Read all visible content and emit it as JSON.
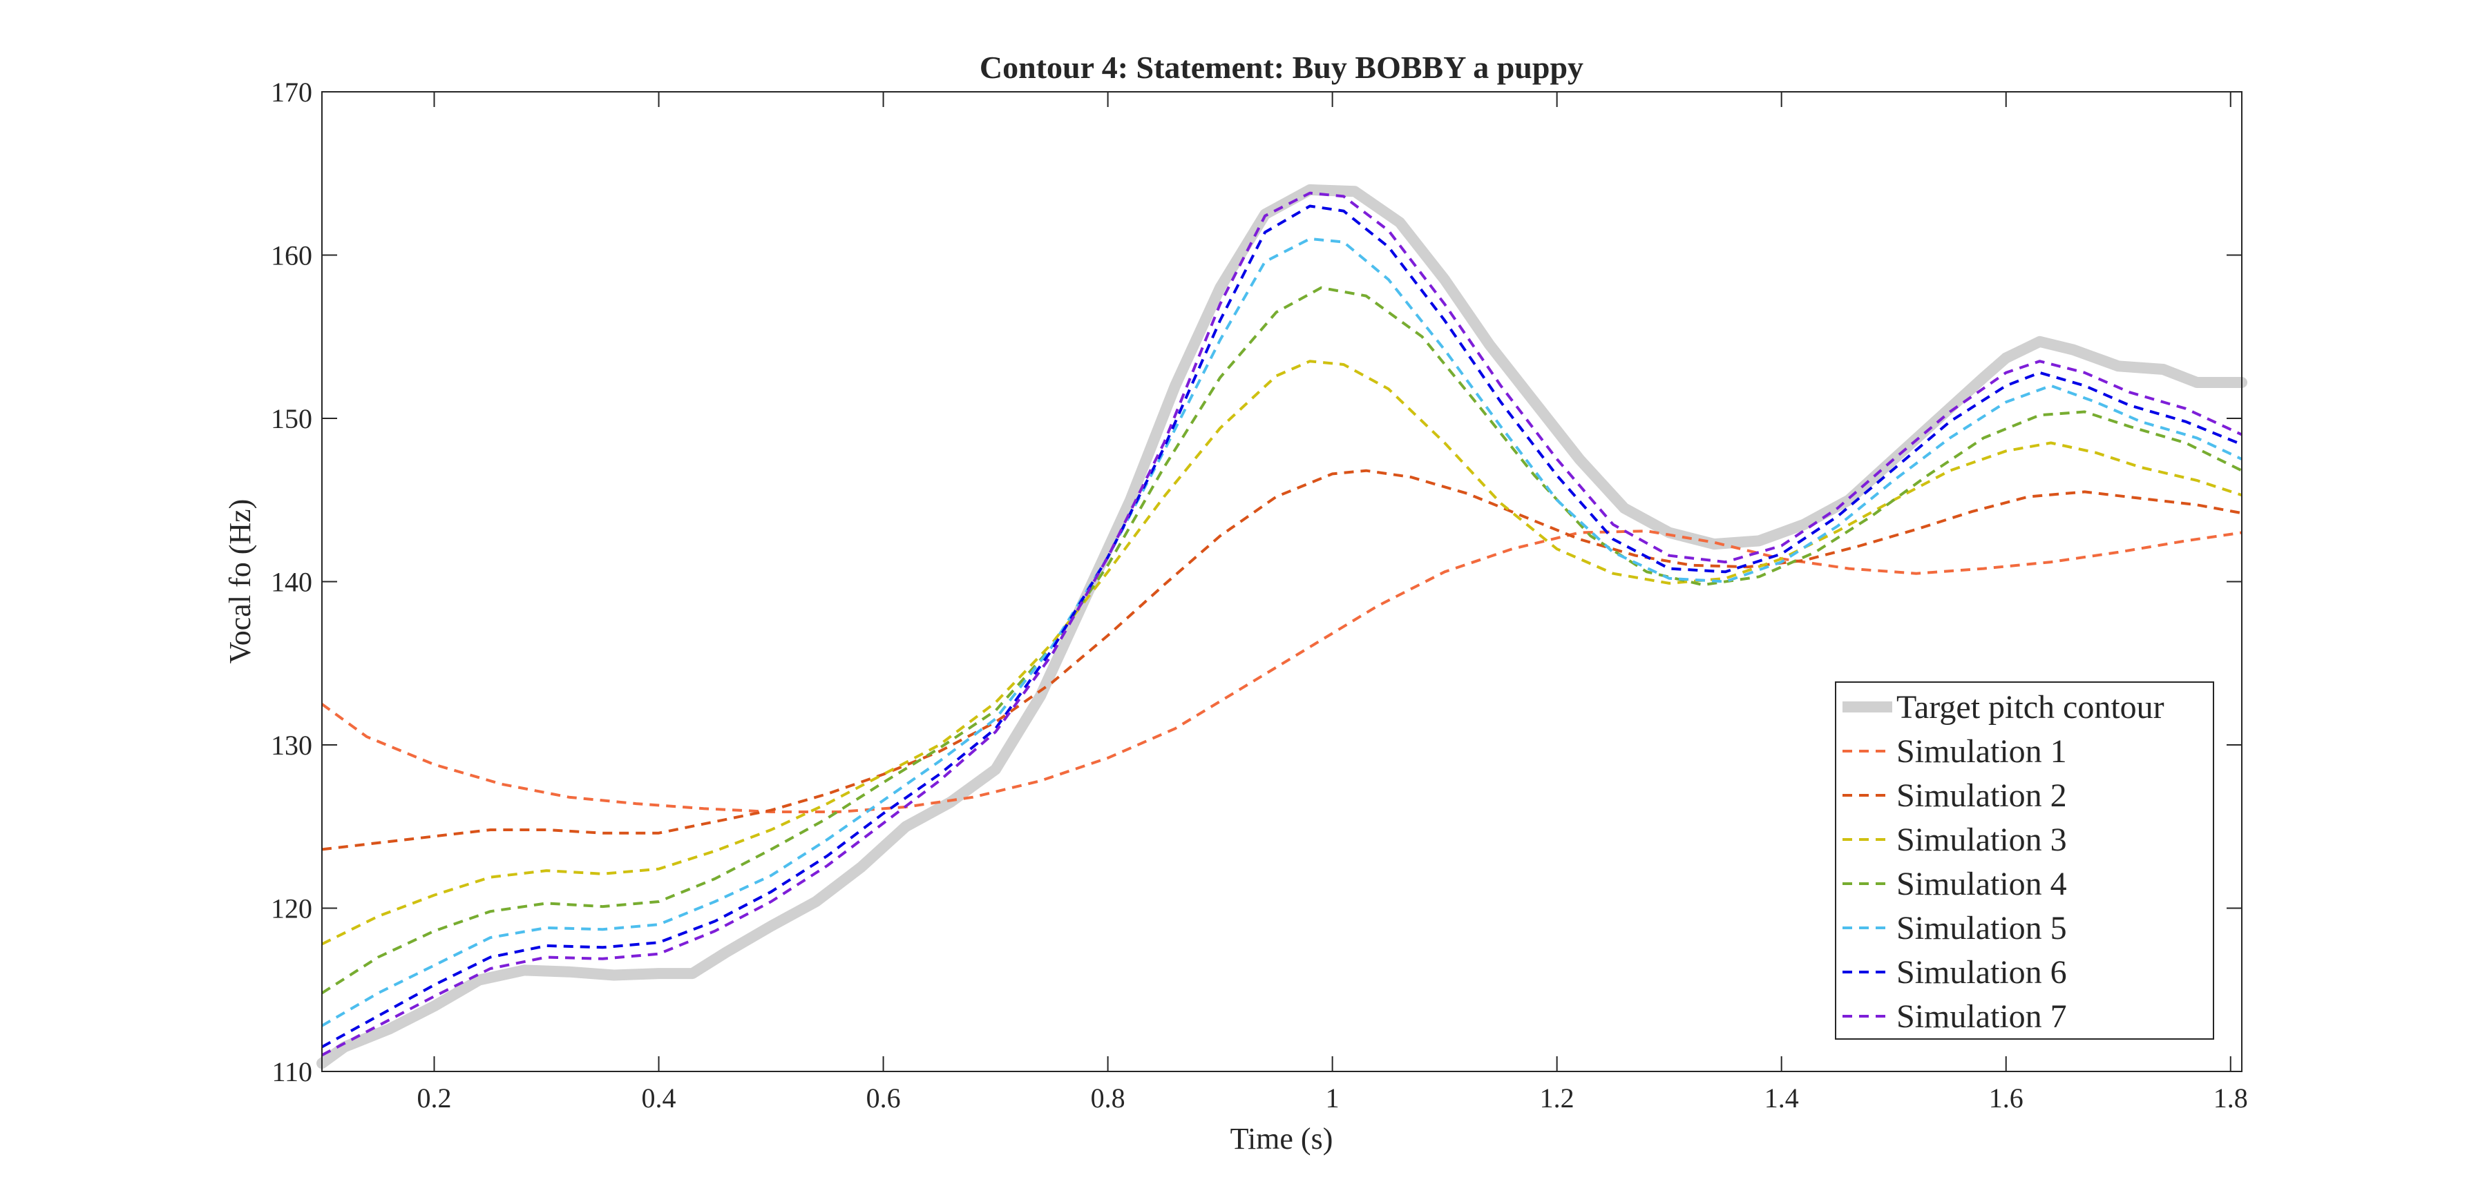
{
  "chart_data": {
    "type": "line",
    "title": "Contour 4: Statement: Buy BOBBY a puppy",
    "xlabel": "Time (s)",
    "ylabel": "Vocal fo (Hz)",
    "xlim": [
      0.1,
      1.81
    ],
    "ylim": [
      110,
      170
    ],
    "xticks": [
      0.2,
      0.4,
      0.6,
      0.8,
      1,
      1.2,
      1.4,
      1.6,
      1.8
    ],
    "xtick_labels": [
      "0.2",
      "0.4",
      "0.6",
      "0.8",
      "1",
      "1.2",
      "1.4",
      "1.6",
      "1.8"
    ],
    "yticks": [
      110,
      120,
      130,
      140,
      150,
      160,
      170
    ],
    "ytick_labels": [
      "110",
      "120",
      "130",
      "140",
      "150",
      "160",
      "170"
    ],
    "grid": false,
    "legend_position": "bottom-right",
    "series": [
      {
        "name": "Target pitch contour",
        "color": "#d0d0d0",
        "style": "solid-thick",
        "x": [
          0.1,
          0.12,
          0.16,
          0.2,
          0.24,
          0.28,
          0.32,
          0.36,
          0.4,
          0.43,
          0.46,
          0.5,
          0.54,
          0.58,
          0.62,
          0.66,
          0.7,
          0.74,
          0.78,
          0.82,
          0.86,
          0.9,
          0.94,
          0.98,
          1.02,
          1.06,
          1.1,
          1.14,
          1.18,
          1.22,
          1.26,
          1.3,
          1.34,
          1.38,
          1.42,
          1.46,
          1.5,
          1.54,
          1.58,
          1.6,
          1.63,
          1.66,
          1.7,
          1.74,
          1.77,
          1.81
        ],
        "values": [
          110.5,
          111.5,
          112.6,
          114.0,
          115.6,
          116.2,
          116.1,
          115.9,
          116.0,
          116.0,
          117.3,
          118.9,
          120.4,
          122.5,
          125.0,
          126.5,
          128.5,
          133.0,
          139.0,
          145.0,
          152.0,
          158.0,
          162.5,
          164.0,
          163.9,
          162.0,
          158.5,
          154.5,
          151.0,
          147.5,
          144.5,
          143.0,
          142.3,
          142.5,
          143.5,
          145.0,
          147.5,
          150.0,
          152.5,
          153.7,
          154.7,
          154.2,
          153.2,
          153.0,
          152.2,
          152.2
        ]
      },
      {
        "name": "Simulation 1",
        "color": "#f26a3d",
        "style": "dashed",
        "x": [
          0.1,
          0.14,
          0.2,
          0.26,
          0.32,
          0.38,
          0.44,
          0.5,
          0.56,
          0.62,
          0.68,
          0.74,
          0.8,
          0.86,
          0.92,
          0.98,
          1.04,
          1.1,
          1.16,
          1.22,
          1.28,
          1.34,
          1.4,
          1.46,
          1.52,
          1.58,
          1.64,
          1.7,
          1.76,
          1.81
        ],
        "values": [
          132.5,
          130.5,
          128.8,
          127.6,
          126.8,
          126.4,
          126.1,
          125.9,
          125.9,
          126.2,
          126.8,
          127.8,
          129.2,
          131.0,
          133.5,
          136.0,
          138.5,
          140.6,
          142.0,
          143.0,
          143.1,
          142.4,
          141.4,
          140.8,
          140.5,
          140.8,
          141.2,
          141.8,
          142.5,
          143.0
        ]
      },
      {
        "name": "Simulation 2",
        "color": "#d95319",
        "style": "dashed",
        "x": [
          0.1,
          0.15,
          0.2,
          0.25,
          0.3,
          0.35,
          0.4,
          0.45,
          0.5,
          0.55,
          0.6,
          0.65,
          0.7,
          0.75,
          0.8,
          0.85,
          0.9,
          0.95,
          1.0,
          1.03,
          1.07,
          1.12,
          1.17,
          1.22,
          1.27,
          1.32,
          1.37,
          1.42,
          1.47,
          1.52,
          1.57,
          1.62,
          1.67,
          1.72,
          1.77,
          1.81
        ],
        "values": [
          123.6,
          124.0,
          124.4,
          124.8,
          124.8,
          124.6,
          124.6,
          125.3,
          126.0,
          127.0,
          128.2,
          129.6,
          131.4,
          133.8,
          136.7,
          139.8,
          142.8,
          145.2,
          146.6,
          146.8,
          146.4,
          145.4,
          144.0,
          142.6,
          141.6,
          141.0,
          140.9,
          141.3,
          142.2,
          143.2,
          144.3,
          145.2,
          145.5,
          145.1,
          144.7,
          144.2
        ]
      },
      {
        "name": "Simulation 3",
        "color": "#cfc010",
        "style": "dashed",
        "x": [
          0.1,
          0.15,
          0.2,
          0.25,
          0.3,
          0.35,
          0.4,
          0.45,
          0.5,
          0.55,
          0.6,
          0.65,
          0.7,
          0.75,
          0.8,
          0.85,
          0.9,
          0.95,
          0.98,
          1.01,
          1.05,
          1.1,
          1.15,
          1.2,
          1.25,
          1.3,
          1.35,
          1.4,
          1.45,
          1.5,
          1.55,
          1.6,
          1.64,
          1.68,
          1.72,
          1.77,
          1.81
        ],
        "values": [
          117.8,
          119.5,
          120.8,
          121.9,
          122.3,
          122.1,
          122.4,
          123.5,
          124.8,
          126.4,
          128.2,
          130.0,
          132.6,
          136.2,
          140.6,
          145.2,
          149.4,
          152.6,
          153.5,
          153.3,
          151.8,
          148.5,
          144.8,
          142.0,
          140.5,
          139.9,
          140.2,
          141.4,
          143.1,
          145.0,
          146.8,
          148.0,
          148.5,
          147.9,
          147.0,
          146.2,
          145.3
        ]
      },
      {
        "name": "Simulation 4",
        "color": "#77ac30",
        "style": "dashed",
        "x": [
          0.1,
          0.15,
          0.2,
          0.25,
          0.3,
          0.35,
          0.4,
          0.45,
          0.5,
          0.55,
          0.6,
          0.65,
          0.7,
          0.75,
          0.8,
          0.85,
          0.9,
          0.95,
          0.99,
          1.03,
          1.08,
          1.13,
          1.18,
          1.23,
          1.28,
          1.33,
          1.38,
          1.43,
          1.48,
          1.53,
          1.58,
          1.63,
          1.67,
          1.71,
          1.76,
          1.81
        ],
        "values": [
          114.8,
          117.0,
          118.6,
          119.8,
          120.3,
          120.1,
          120.4,
          121.8,
          123.6,
          125.5,
          127.7,
          129.8,
          132.1,
          136.0,
          141.0,
          147.0,
          152.5,
          156.5,
          158.0,
          157.5,
          155.0,
          150.8,
          146.5,
          142.8,
          140.6,
          139.8,
          140.3,
          141.8,
          144.0,
          146.5,
          148.8,
          150.2,
          150.4,
          149.5,
          148.5,
          146.8
        ]
      },
      {
        "name": "Simulation 5",
        "color": "#4dbeee",
        "style": "dashed",
        "x": [
          0.1,
          0.15,
          0.2,
          0.25,
          0.3,
          0.35,
          0.4,
          0.45,
          0.5,
          0.55,
          0.6,
          0.65,
          0.7,
          0.75,
          0.8,
          0.85,
          0.9,
          0.94,
          0.98,
          1.01,
          1.05,
          1.1,
          1.15,
          1.2,
          1.25,
          1.3,
          1.35,
          1.4,
          1.45,
          1.5,
          1.55,
          1.6,
          1.64,
          1.68,
          1.72,
          1.77,
          1.81
        ],
        "values": [
          112.8,
          114.8,
          116.5,
          118.2,
          118.8,
          118.7,
          119.0,
          120.4,
          122.0,
          124.2,
          126.6,
          129.0,
          131.6,
          136.0,
          141.5,
          148.0,
          154.8,
          159.6,
          161.0,
          160.8,
          158.5,
          154.2,
          149.5,
          145.0,
          141.8,
          140.2,
          140.0,
          141.2,
          143.4,
          146.2,
          148.8,
          151.0,
          152.0,
          151.0,
          149.8,
          148.8,
          147.5
        ]
      },
      {
        "name": "Simulation 6",
        "color": "#0000e6",
        "style": "dashed",
        "x": [
          0.1,
          0.15,
          0.2,
          0.25,
          0.3,
          0.35,
          0.4,
          0.45,
          0.5,
          0.55,
          0.6,
          0.65,
          0.7,
          0.75,
          0.8,
          0.85,
          0.9,
          0.94,
          0.98,
          1.01,
          1.05,
          1.1,
          1.15,
          1.2,
          1.25,
          1.3,
          1.35,
          1.4,
          1.45,
          1.5,
          1.55,
          1.6,
          1.63,
          1.67,
          1.71,
          1.76,
          1.81
        ],
        "values": [
          111.5,
          113.4,
          115.3,
          117.0,
          117.7,
          117.6,
          117.9,
          119.2,
          121.0,
          123.2,
          125.8,
          128.2,
          131.0,
          135.8,
          141.5,
          148.2,
          156.0,
          161.4,
          163.0,
          162.7,
          160.5,
          156.0,
          151.0,
          146.5,
          142.6,
          140.8,
          140.6,
          141.7,
          144.0,
          146.9,
          149.8,
          152.0,
          152.8,
          152.0,
          150.8,
          149.8,
          148.4
        ]
      },
      {
        "name": "Simulation 7",
        "color": "#7e1ed8",
        "style": "dashed",
        "x": [
          0.1,
          0.15,
          0.2,
          0.25,
          0.3,
          0.35,
          0.4,
          0.45,
          0.5,
          0.55,
          0.6,
          0.65,
          0.7,
          0.75,
          0.8,
          0.85,
          0.9,
          0.94,
          0.98,
          1.01,
          1.05,
          1.1,
          1.15,
          1.2,
          1.25,
          1.3,
          1.35,
          1.4,
          1.45,
          1.5,
          1.55,
          1.6,
          1.63,
          1.67,
          1.71,
          1.76,
          1.81
        ],
        "values": [
          111.0,
          112.8,
          114.6,
          116.3,
          117.0,
          116.9,
          117.2,
          118.6,
          120.4,
          122.6,
          125.2,
          127.8,
          130.8,
          135.5,
          141.5,
          148.5,
          157.0,
          162.4,
          163.8,
          163.6,
          161.5,
          157.0,
          152.0,
          147.5,
          143.5,
          141.6,
          141.2,
          142.2,
          144.5,
          147.5,
          150.4,
          152.8,
          153.5,
          152.8,
          151.6,
          150.6,
          149.0
        ]
      }
    ]
  }
}
